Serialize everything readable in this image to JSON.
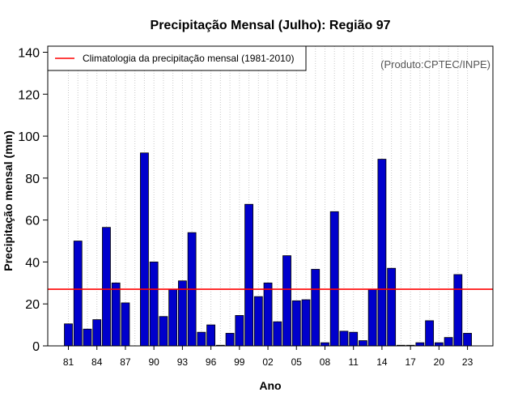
{
  "chart_data": {
    "type": "bar",
    "title": "Precipitação Mensal (Julho): Região 97",
    "xlabel": "Ano",
    "ylabel": "Precipitação mensal (mm)",
    "ylim": [
      0,
      140
    ],
    "yticks": [
      0,
      20,
      40,
      60,
      80,
      100,
      120,
      140
    ],
    "grid": "vertical dotted",
    "years": [
      1981,
      1982,
      1983,
      1984,
      1985,
      1986,
      1987,
      1988,
      1989,
      1990,
      1991,
      1992,
      1993,
      1994,
      1995,
      1996,
      1997,
      1998,
      1999,
      2000,
      2001,
      2002,
      2003,
      2004,
      2005,
      2006,
      2007,
      2008,
      2009,
      2010,
      2011,
      2012,
      2013,
      2014,
      2015,
      2016,
      2017,
      2018,
      2019,
      2020,
      2021,
      2022,
      2023
    ],
    "xtick_labels": [
      {
        "year": 1981,
        "label": "81"
      },
      {
        "year": 1984,
        "label": "84"
      },
      {
        "year": 1987,
        "label": "87"
      },
      {
        "year": 1990,
        "label": "90"
      },
      {
        "year": 1993,
        "label": "93"
      },
      {
        "year": 1996,
        "label": "96"
      },
      {
        "year": 1999,
        "label": "99"
      },
      {
        "year": 2002,
        "label": "02"
      },
      {
        "year": 2005,
        "label": "05"
      },
      {
        "year": 2008,
        "label": "08"
      },
      {
        "year": 2011,
        "label": "11"
      },
      {
        "year": 2014,
        "label": "14"
      },
      {
        "year": 2017,
        "label": "17"
      },
      {
        "year": 2020,
        "label": "20"
      },
      {
        "year": 2023,
        "label": "23"
      }
    ],
    "series": [
      {
        "name": "Precipitação mensal",
        "color": "#0000cc",
        "values": [
          10.5,
          50,
          8,
          12.5,
          56.5,
          30,
          20.5,
          0,
          92,
          40,
          14,
          27,
          31,
          54,
          6.5,
          10,
          0.3,
          6,
          14.5,
          67.5,
          23.5,
          30,
          11.5,
          43,
          21.5,
          22,
          36.5,
          1.5,
          64,
          7,
          6.5,
          2.5,
          27,
          89,
          37,
          0.3,
          0.3,
          1.5,
          12,
          1.5,
          4,
          34,
          6
        ]
      }
    ],
    "reference_line": {
      "label": "Climatologia da precipitação mensal (1981-2010)",
      "value": 27,
      "color": "#ff0000"
    },
    "legend_position": "top-left",
    "credit": "(Produto:CPTEC/INPE)"
  }
}
